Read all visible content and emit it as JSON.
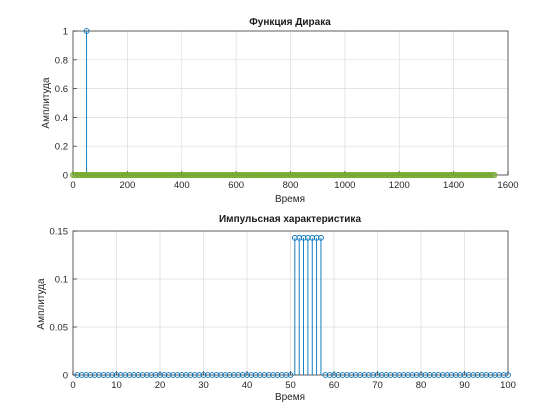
{
  "chart_data": [
    {
      "type": "stem",
      "title": "Функция Дирака",
      "xlabel": "Время",
      "ylabel": "Амплитуда",
      "xlim": [
        0,
        1600
      ],
      "ylim": [
        0,
        1
      ],
      "grid": true,
      "xticks": [
        0,
        200,
        400,
        600,
        800,
        1000,
        1200,
        1400,
        1600
      ],
      "xtick_labels": [
        "0",
        "200",
        "400",
        "600",
        "800",
        "1000",
        "1200",
        "1400",
        "1600"
      ],
      "yticks": [
        0,
        0.2,
        0.4,
        0.6,
        0.8,
        1
      ],
      "ytick_labels": [
        "0",
        "0.2",
        "0.4",
        "0.6",
        "0.8",
        "1"
      ],
      "series": [
        {
          "color": "#0072bd",
          "x": [
            50
          ],
          "values": [
            1
          ]
        },
        {
          "color": "#77ac30",
          "x_range": [
            0,
            1550
          ],
          "x_step": 5,
          "value": 0
        }
      ]
    },
    {
      "type": "stem",
      "title": "Импульсная характеристика",
      "xlabel": "Время",
      "ylabel": "Амплитуда",
      "xlim": [
        0,
        100
      ],
      "ylim": [
        0,
        0.15
      ],
      "grid": true,
      "xticks": [
        0,
        10,
        20,
        30,
        40,
        50,
        60,
        70,
        80,
        90,
        100
      ],
      "xtick_labels": [
        "0",
        "10",
        "20",
        "30",
        "40",
        "50",
        "60",
        "70",
        "80",
        "90",
        "100"
      ],
      "yticks": [
        0,
        0.05,
        0.1,
        0.15
      ],
      "ytick_labels": [
        "0",
        "0.05",
        "0.1",
        "0.15"
      ],
      "series": [
        {
          "color": "#0072bd",
          "x_range": [
            1,
            100
          ],
          "x_step": 1,
          "value": 0,
          "nonzero": [
            {
              "x": 51,
              "y": 0.1429
            },
            {
              "x": 52,
              "y": 0.1429
            },
            {
              "x": 53,
              "y": 0.1429
            },
            {
              "x": 54,
              "y": 0.1429
            },
            {
              "x": 55,
              "y": 0.1429
            },
            {
              "x": 56,
              "y": 0.1429
            },
            {
              "x": 57,
              "y": 0.1429
            }
          ]
        }
      ]
    }
  ]
}
